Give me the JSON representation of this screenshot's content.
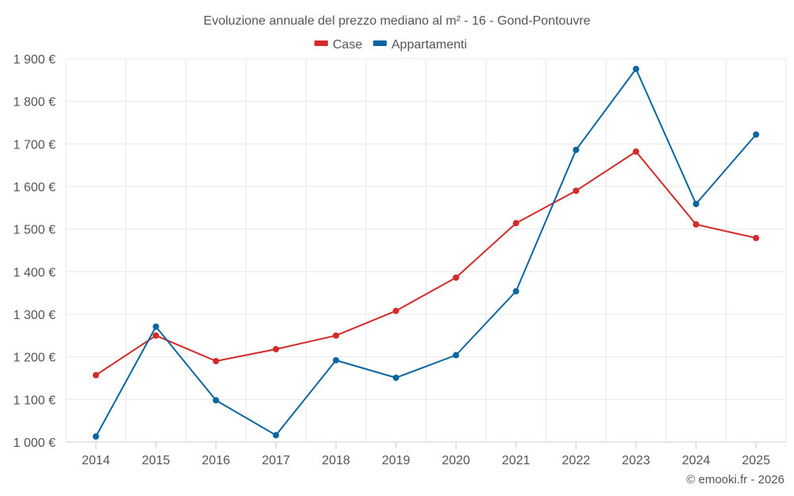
{
  "chart_data": {
    "type": "line",
    "title": "Evoluzione annuale del prezzo mediano al m² - 16 - Gond-Pontouvre",
    "categories": [
      "2014",
      "2015",
      "2016",
      "2017",
      "2018",
      "2019",
      "2020",
      "2021",
      "2022",
      "2023",
      "2024",
      "2025"
    ],
    "series": [
      {
        "name": "Case",
        "color": "#d42a2a",
        "values": [
          1157,
          1250,
          1190,
          1218,
          1250,
          1308,
          1386,
          1514,
          1590,
          1682,
          1511,
          1479
        ]
      },
      {
        "name": "Appartamenti",
        "color": "#0a66a0",
        "values": [
          1013,
          1271,
          1098,
          1016,
          1192,
          1151,
          1204,
          1354,
          1686,
          1876,
          1559,
          1722
        ]
      }
    ],
    "y_ticks": [
      "1 000 €",
      "1 100 €",
      "1 200 €",
      "1 300 €",
      "1 400 €",
      "1 500 €",
      "1 600 €",
      "1 700 €",
      "1 800 €",
      "1 900 €"
    ],
    "y_tick_values": [
      1000,
      1100,
      1200,
      1300,
      1400,
      1500,
      1600,
      1700,
      1800,
      1900
    ],
    "ylim": [
      1000,
      1900
    ],
    "xlabel": "",
    "ylabel": "",
    "grid": true,
    "legend_position": "top-center"
  },
  "credit": "© emooki.fr - 2026"
}
